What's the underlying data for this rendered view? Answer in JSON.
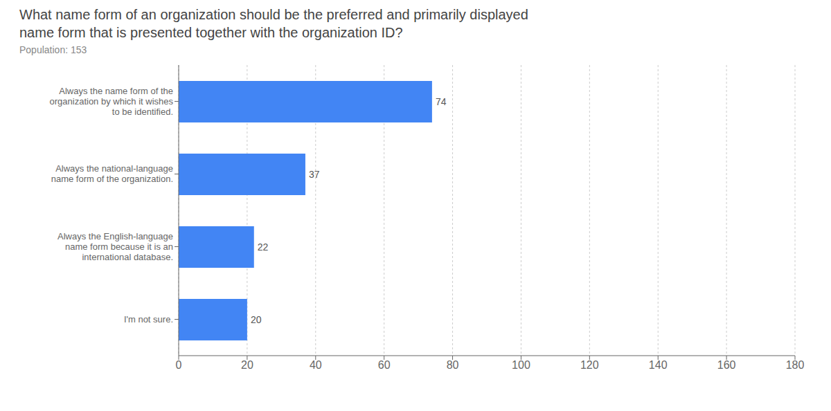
{
  "chart_data": {
    "type": "bar",
    "title": "What name form of an organization should be the preferred and primarily displayed\nname form that is presented together with the organization ID?",
    "subtitle": "Population: 153",
    "orientation": "horizontal",
    "categories": [
      "Always the name form of the\norganization by which it wishes\nto be identified.",
      "Always the national-language\nname form of the organization.",
      "Always the English-language\nname form because it is an\ninternational database.",
      "I'm not sure."
    ],
    "values": [
      74,
      37,
      22,
      20
    ],
    "color": "#4285f4",
    "xlim": [
      0,
      180
    ],
    "xticks": [
      0,
      20,
      40,
      60,
      80,
      100,
      120,
      140,
      160,
      180
    ],
    "grid": true,
    "data_labels": true
  }
}
